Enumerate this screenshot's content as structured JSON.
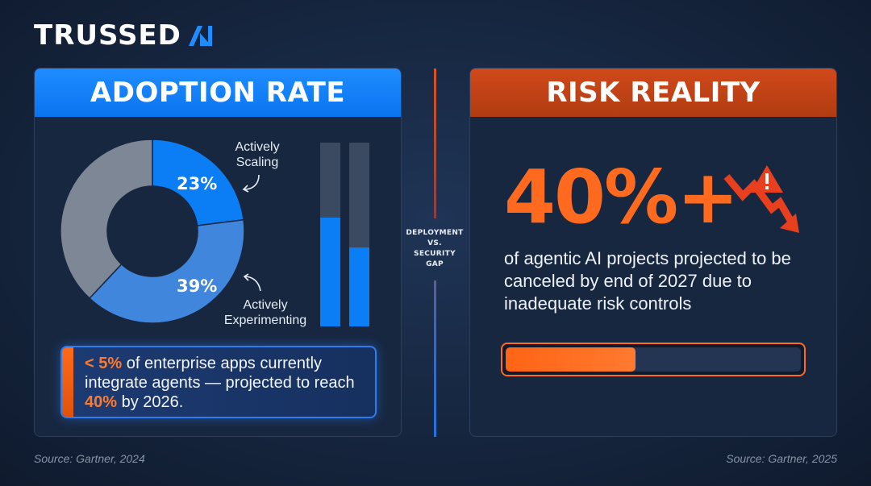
{
  "brand": {
    "name": "TRUSSED",
    "logo_icon": "trussed-ai-mark"
  },
  "adoption": {
    "header": "ADOPTION RATE",
    "segments": [
      {
        "label": "23%",
        "callout": [
          "Actively",
          "Scaling"
        ]
      },
      {
        "label": "39%",
        "callout": [
          "Actively",
          "Experimenting"
        ]
      }
    ],
    "note": {
      "prefix": "< 5%",
      "text_1": " of enterprise apps currently integrate agents — projected to reach ",
      "highlight": "40%",
      "text_2": " by 2026."
    },
    "source": "Source: Gartner, 2024"
  },
  "divider": {
    "lines": [
      "DEPLOYMENT",
      "VS.",
      "SECURITY",
      "GAP"
    ]
  },
  "risk": {
    "header": "RISK REALITY",
    "stat": "40%+",
    "description": "of agentic AI projects projected to be canceled by end of 2027 due to inadequate risk controls",
    "progress_fraction": 0.44,
    "source": "Source: Gartner, 2025"
  },
  "chart_data": [
    {
      "type": "pie",
      "categories": [
        "Actively Scaling",
        "Actively Experimenting",
        ""
      ],
      "values": [
        23,
        39,
        38
      ],
      "colors": [
        "#0b7df5",
        "#3f86dc",
        "#7e8796"
      ],
      "donut": true
    },
    {
      "type": "bar",
      "categories": [
        "",
        ""
      ],
      "values": [
        0.59,
        0.43
      ],
      "ylim": [
        0,
        1
      ],
      "colors": [
        "#0b7df5",
        "#0b7df5"
      ]
    }
  ],
  "colors": {
    "blue_accent": "#1f8cff",
    "orange_accent": "#ff6a1f",
    "header_orange": "#c4431a",
    "background": "#16263f"
  }
}
